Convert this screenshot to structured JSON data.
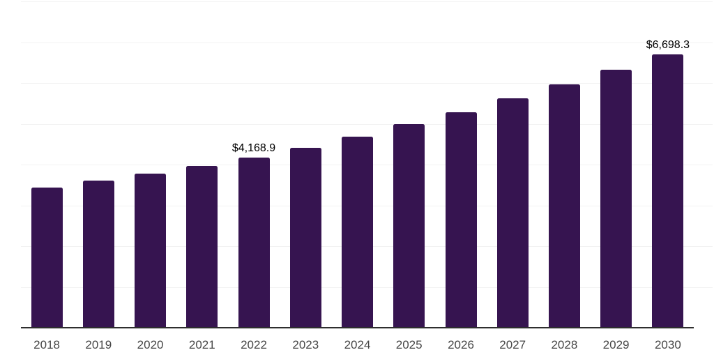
{
  "chart_data": {
    "type": "bar",
    "title": "",
    "xlabel": "",
    "ylabel": "",
    "categories": [
      "2018",
      "2019",
      "2020",
      "2021",
      "2022",
      "2023",
      "2024",
      "2025",
      "2026",
      "2027",
      "2028",
      "2029",
      "2030"
    ],
    "values": [
      3440,
      3600,
      3780,
      3970,
      4168.9,
      4410,
      4680,
      5000,
      5290,
      5630,
      5960,
      6330,
      6698.3
    ],
    "value_labels": [
      {
        "category": "2022",
        "text": "$4,168.9"
      },
      {
        "category": "2030",
        "text": "$6,698.3"
      }
    ],
    "ylim": [
      0,
      8000
    ],
    "gridline_interval": 1000,
    "grid": "horizontal-only",
    "legend": "none",
    "y_axis_ticks_visible": false,
    "colors": {
      "bar": "#361450",
      "axis_line": "#2e2e2e",
      "gridline": "#f2f2f2",
      "tick_label": "#474747",
      "value_label": "#000000",
      "background": "#ffffff"
    }
  }
}
